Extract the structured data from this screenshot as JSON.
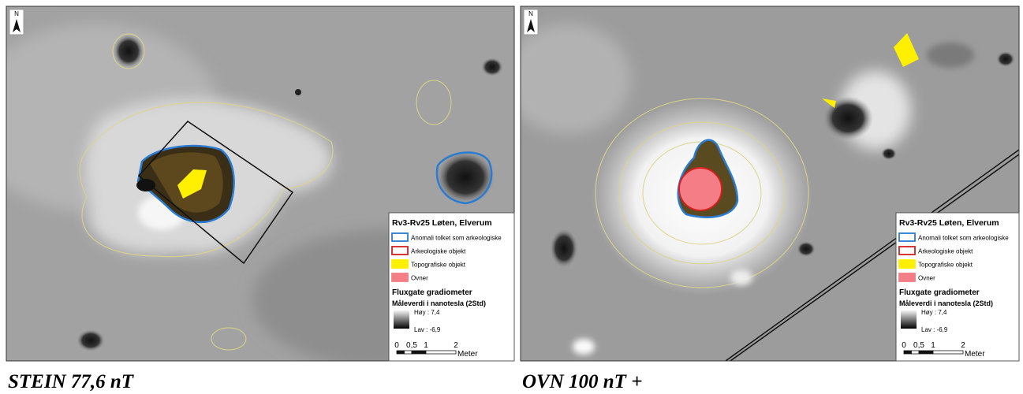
{
  "panels": [
    {
      "north": "N",
      "caption": "STEIN 77,6 nT",
      "legend": {
        "title": "Rv3-Rv25 Løten, Elverum",
        "items": [
          "Anomali tolket som arkeologiske",
          "Arkeologiske objekt",
          "Topografiske objekt",
          "Ovner"
        ],
        "instrument": "Fluxgate gradiometer",
        "unit": "Måleverdi i nanotesla (2Std)",
        "high": "Høy : 7,4",
        "low": "Lav : -6,9",
        "scale": [
          "0",
          "0,5",
          "1",
          "2"
        ],
        "scale_unit": "Meter"
      }
    },
    {
      "north": "N",
      "caption": "OVN 100 nT +",
      "legend": {
        "title": "Rv3-Rv25 Løten, Elverum",
        "items": [
          "Anomali tolket som arkeologiske",
          "Arkeologiske objekt",
          "Topografiske objekt",
          "Ovner"
        ],
        "instrument": "Fluxgate gradiometer",
        "unit": "Måleverdi i nanotesla (2Std)",
        "high": "Høy : 7,4",
        "low": "Lav : -6,9",
        "scale": [
          "0",
          "0,5",
          "1",
          "2"
        ],
        "scale_unit": "Meter"
      }
    }
  ]
}
